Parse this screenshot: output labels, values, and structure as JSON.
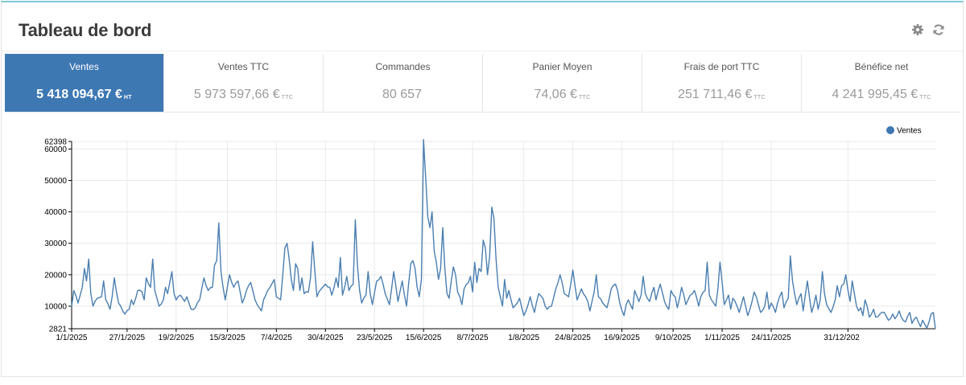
{
  "header": {
    "title": "Tableau de bord"
  },
  "tools": [
    {
      "name": "settings",
      "icon": "gear-icon"
    },
    {
      "name": "refresh",
      "icon": "refresh-icon"
    }
  ],
  "kpis": [
    {
      "label": "Ventes",
      "value": "5 418 094,67 €",
      "unit": "HT",
      "active": true
    },
    {
      "label": "Ventes TTC",
      "value": "5 973 597,66 €",
      "unit": "TTC"
    },
    {
      "label": "Commandes",
      "value": "80 657",
      "unit": ""
    },
    {
      "label": "Panier Moyen",
      "value": "74,06 €",
      "unit": "TTC"
    },
    {
      "label": "Frais de port TTC",
      "value": "251 711,46 €",
      "unit": "TTC"
    },
    {
      "label": "Bénéfice net",
      "value": "4 241 995,45 €",
      "unit": "TTC"
    }
  ],
  "colors": {
    "accent": "#3d78b3",
    "line": "#4a7eb0",
    "grid": "#e9e9e9"
  },
  "chart_data": {
    "type": "line",
    "title": "",
    "xlabel": "",
    "ylabel": "",
    "ylim": [
      2821,
      62398
    ],
    "y_ticks": [
      2821,
      10000,
      20000,
      30000,
      40000,
      50000,
      60000,
      62398
    ],
    "y_tick_labels": [
      "2821",
      "10000",
      "20000",
      "30000",
      "40000",
      "50000",
      "60000",
      "62398"
    ],
    "x_tick_indices": [
      0,
      26,
      49,
      73,
      96,
      119,
      142,
      165,
      188,
      212,
      235,
      258,
      282,
      305,
      328,
      364
    ],
    "x_tick_labels": [
      "1/1/2025",
      "27/1/2025",
      "19/2/2025",
      "15/3/2025",
      "7/4/2025",
      "30/4/2025",
      "23/5/2025",
      "15/6/2025",
      "8/7/2025",
      "1/8/2025",
      "24/8/2025",
      "16/9/2025",
      "9/10/2025",
      "1/11/2025",
      "24/11/2025",
      "31/12/202"
    ],
    "legend": {
      "position": "top-right"
    },
    "series": [
      {
        "name": "Ventes",
        "knots": [
          [
            0,
            9800
          ],
          [
            1,
            15000
          ],
          [
            3,
            11000
          ],
          [
            5,
            16000
          ],
          [
            6,
            22000
          ],
          [
            7,
            18000
          ],
          [
            8,
            25000
          ],
          [
            9,
            14000
          ],
          [
            10,
            10000
          ],
          [
            12,
            12500
          ],
          [
            14,
            13000
          ],
          [
            15,
            18000
          ],
          [
            16,
            12000
          ],
          [
            18,
            9000
          ],
          [
            19,
            13000
          ],
          [
            20,
            19000
          ],
          [
            22,
            11000
          ],
          [
            23,
            10000
          ],
          [
            25,
            7500
          ],
          [
            27,
            9000
          ],
          [
            28,
            12000
          ],
          [
            29,
            10500
          ],
          [
            31,
            15000
          ],
          [
            33,
            14500
          ],
          [
            34,
            12000
          ],
          [
            35,
            19000
          ],
          [
            37,
            16000
          ],
          [
            38,
            25000
          ],
          [
            39,
            15000
          ],
          [
            41,
            10000
          ],
          [
            43,
            12000
          ],
          [
            44,
            16000
          ],
          [
            45,
            14000
          ],
          [
            47,
            21000
          ],
          [
            48,
            14000
          ],
          [
            49,
            12000
          ],
          [
            51,
            13500
          ],
          [
            53,
            11500
          ],
          [
            54,
            13000
          ],
          [
            56,
            9000
          ],
          [
            58,
            9500
          ],
          [
            60,
            12000
          ],
          [
            62,
            19000
          ],
          [
            64,
            15000
          ],
          [
            66,
            16000
          ],
          [
            67,
            23000
          ],
          [
            68,
            24500
          ],
          [
            69,
            36500
          ],
          [
            70,
            21000
          ],
          [
            71,
            16000
          ],
          [
            72,
            12000
          ],
          [
            74,
            20000
          ],
          [
            76,
            16000
          ],
          [
            78,
            18000
          ],
          [
            80,
            11000
          ],
          [
            82,
            15000
          ],
          [
            84,
            17500
          ],
          [
            86,
            12000
          ],
          [
            87,
            10500
          ],
          [
            89,
            8500
          ],
          [
            90,
            12000
          ],
          [
            91,
            13500
          ],
          [
            93,
            16000
          ],
          [
            95,
            18500
          ],
          [
            96,
            13000
          ],
          [
            98,
            12000
          ],
          [
            99,
            20000
          ],
          [
            100,
            28500
          ],
          [
            101,
            30000
          ],
          [
            102,
            25000
          ],
          [
            103,
            18500
          ],
          [
            104,
            15000
          ],
          [
            105,
            23500
          ],
          [
            106,
            22000
          ],
          [
            107,
            15000
          ],
          [
            108,
            19000
          ],
          [
            109,
            14000
          ],
          [
            111,
            14500
          ],
          [
            112,
            19000
          ],
          [
            113,
            30500
          ],
          [
            114,
            21500
          ],
          [
            115,
            13000
          ],
          [
            117,
            15500
          ],
          [
            119,
            17000
          ],
          [
            121,
            16000
          ],
          [
            122,
            13500
          ],
          [
            124,
            19000
          ],
          [
            125,
            16000
          ],
          [
            126,
            25500
          ],
          [
            127,
            13500
          ],
          [
            128,
            16000
          ],
          [
            129,
            19500
          ],
          [
            130,
            15000
          ],
          [
            132,
            17000
          ],
          [
            133,
            37500
          ],
          [
            134,
            23000
          ],
          [
            135,
            15000
          ],
          [
            136,
            11000
          ],
          [
            138,
            13500
          ],
          [
            139,
            21000
          ],
          [
            140,
            14000
          ],
          [
            141,
            10500
          ],
          [
            143,
            18000
          ],
          [
            145,
            19500
          ],
          [
            147,
            14000
          ],
          [
            149,
            10500
          ],
          [
            151,
            21000
          ],
          [
            152,
            16500
          ],
          [
            153,
            11500
          ],
          [
            155,
            18000
          ],
          [
            157,
            10000
          ],
          [
            159,
            23500
          ],
          [
            160,
            24500
          ],
          [
            161,
            22000
          ],
          [
            162,
            16000
          ],
          [
            163,
            13000
          ],
          [
            164,
            18500
          ],
          [
            165,
            63000
          ],
          [
            166,
            51000
          ],
          [
            167,
            38500
          ],
          [
            168,
            35000
          ],
          [
            169,
            40000
          ],
          [
            170,
            27500
          ],
          [
            171,
            24000
          ],
          [
            172,
            18500
          ],
          [
            173,
            22000
          ],
          [
            174,
            35000
          ],
          [
            175,
            22000
          ],
          [
            176,
            14000
          ],
          [
            177,
            12500
          ],
          [
            178,
            18000
          ],
          [
            179,
            22500
          ],
          [
            180,
            20000
          ],
          [
            181,
            14500
          ],
          [
            182,
            13000
          ],
          [
            183,
            10500
          ],
          [
            184,
            15500
          ],
          [
            186,
            17500
          ],
          [
            187,
            19500
          ],
          [
            188,
            14500
          ],
          [
            189,
            24000
          ],
          [
            190,
            17500
          ],
          [
            191,
            22000
          ],
          [
            192,
            21000
          ],
          [
            193,
            31000
          ],
          [
            194,
            28500
          ],
          [
            195,
            20000
          ],
          [
            196,
            26000
          ],
          [
            197,
            41500
          ],
          [
            198,
            38000
          ],
          [
            199,
            25000
          ],
          [
            200,
            16000
          ],
          [
            201,
            13000
          ],
          [
            202,
            10000
          ],
          [
            203,
            18500
          ],
          [
            204,
            12500
          ],
          [
            205,
            15000
          ],
          [
            206,
            12000
          ],
          [
            207,
            9500
          ],
          [
            209,
            11000
          ],
          [
            210,
            12500
          ],
          [
            212,
            7000
          ],
          [
            214,
            10500
          ],
          [
            215,
            13000
          ],
          [
            217,
            8000
          ],
          [
            219,
            14000
          ],
          [
            221,
            12500
          ],
          [
            222,
            10000
          ],
          [
            223,
            9000
          ],
          [
            225,
            10000
          ],
          [
            227,
            15500
          ],
          [
            229,
            20000
          ],
          [
            231,
            14000
          ],
          [
            233,
            13000
          ],
          [
            234,
            17000
          ],
          [
            235,
            21500
          ],
          [
            236,
            16500
          ],
          [
            237,
            12000
          ],
          [
            239,
            15500
          ],
          [
            241,
            13000
          ],
          [
            242,
            11500
          ],
          [
            243,
            8500
          ],
          [
            245,
            14500
          ],
          [
            246,
            20000
          ],
          [
            247,
            13000
          ],
          [
            249,
            11000
          ],
          [
            251,
            9500
          ],
          [
            253,
            15500
          ],
          [
            255,
            17000
          ],
          [
            256,
            15000
          ],
          [
            257,
            11000
          ],
          [
            259,
            7000
          ],
          [
            260,
            10500
          ],
          [
            261,
            12000
          ],
          [
            263,
            9000
          ],
          [
            264,
            15000
          ],
          [
            266,
            11500
          ],
          [
            267,
            13500
          ],
          [
            268,
            19500
          ],
          [
            269,
            14000
          ],
          [
            271,
            11500
          ],
          [
            273,
            16000
          ],
          [
            274,
            12000
          ],
          [
            276,
            17000
          ],
          [
            278,
            11500
          ],
          [
            280,
            9000
          ],
          [
            281,
            15000
          ],
          [
            283,
            13000
          ],
          [
            284,
            9500
          ],
          [
            285,
            12500
          ],
          [
            286,
            16000
          ],
          [
            288,
            10500
          ],
          [
            290,
            13500
          ],
          [
            292,
            15000
          ],
          [
            294,
            10000
          ],
          [
            295,
            13000
          ],
          [
            297,
            15000
          ],
          [
            298,
            24000
          ],
          [
            299,
            13500
          ],
          [
            300,
            12000
          ],
          [
            302,
            10000
          ],
          [
            303,
            15500
          ],
          [
            304,
            24000
          ],
          [
            305,
            17500
          ],
          [
            306,
            10500
          ],
          [
            308,
            13500
          ],
          [
            309,
            9000
          ],
          [
            310,
            12500
          ],
          [
            312,
            10000
          ],
          [
            313,
            8000
          ],
          [
            314,
            10500
          ],
          [
            315,
            13000
          ],
          [
            317,
            7000
          ],
          [
            319,
            11500
          ],
          [
            320,
            14500
          ],
          [
            321,
            13000
          ],
          [
            323,
            8000
          ],
          [
            325,
            10000
          ],
          [
            326,
            14500
          ],
          [
            327,
            9000
          ],
          [
            328,
            11000
          ],
          [
            330,
            8000
          ],
          [
            331,
            11000
          ],
          [
            333,
            14500
          ],
          [
            334,
            9500
          ],
          [
            336,
            12500
          ],
          [
            337,
            26000
          ],
          [
            338,
            18000
          ],
          [
            340,
            10500
          ],
          [
            342,
            14000
          ],
          [
            343,
            8500
          ],
          [
            345,
            18000
          ],
          [
            346,
            12500
          ],
          [
            347,
            8000
          ],
          [
            349,
            13500
          ],
          [
            350,
            9000
          ],
          [
            351,
            12000
          ],
          [
            352,
            21000
          ],
          [
            353,
            14000
          ],
          [
            354,
            10500
          ],
          [
            356,
            8000
          ],
          [
            358,
            12000
          ],
          [
            359,
            16500
          ],
          [
            360,
            13000
          ],
          [
            361,
            16500
          ],
          [
            362,
            17000
          ],
          [
            363,
            20000
          ],
          [
            364,
            15000
          ],
          [
            365,
            11500
          ],
          [
            366,
            18000
          ],
          [
            367,
            14000
          ],
          [
            368,
            10000
          ],
          [
            369,
            8500
          ],
          [
            370,
            9500
          ],
          [
            371,
            7000
          ],
          [
            372,
            12000
          ],
          [
            373,
            10000
          ],
          [
            374,
            6500
          ],
          [
            376,
            9000
          ],
          [
            377,
            6500
          ],
          [
            379,
            7500
          ],
          [
            381,
            8000
          ],
          [
            383,
            5500
          ],
          [
            385,
            7500
          ],
          [
            386,
            6000
          ],
          [
            388,
            8500
          ],
          [
            389,
            6500
          ],
          [
            391,
            5000
          ],
          [
            393,
            8000
          ],
          [
            394,
            4500
          ],
          [
            396,
            6500
          ],
          [
            398,
            3500
          ],
          [
            399,
            5500
          ],
          [
            401,
            3000
          ],
          [
            402,
            5000
          ],
          [
            403,
            7500
          ],
          [
            404,
            8000
          ],
          [
            405,
            2821
          ]
        ]
      }
    ]
  }
}
